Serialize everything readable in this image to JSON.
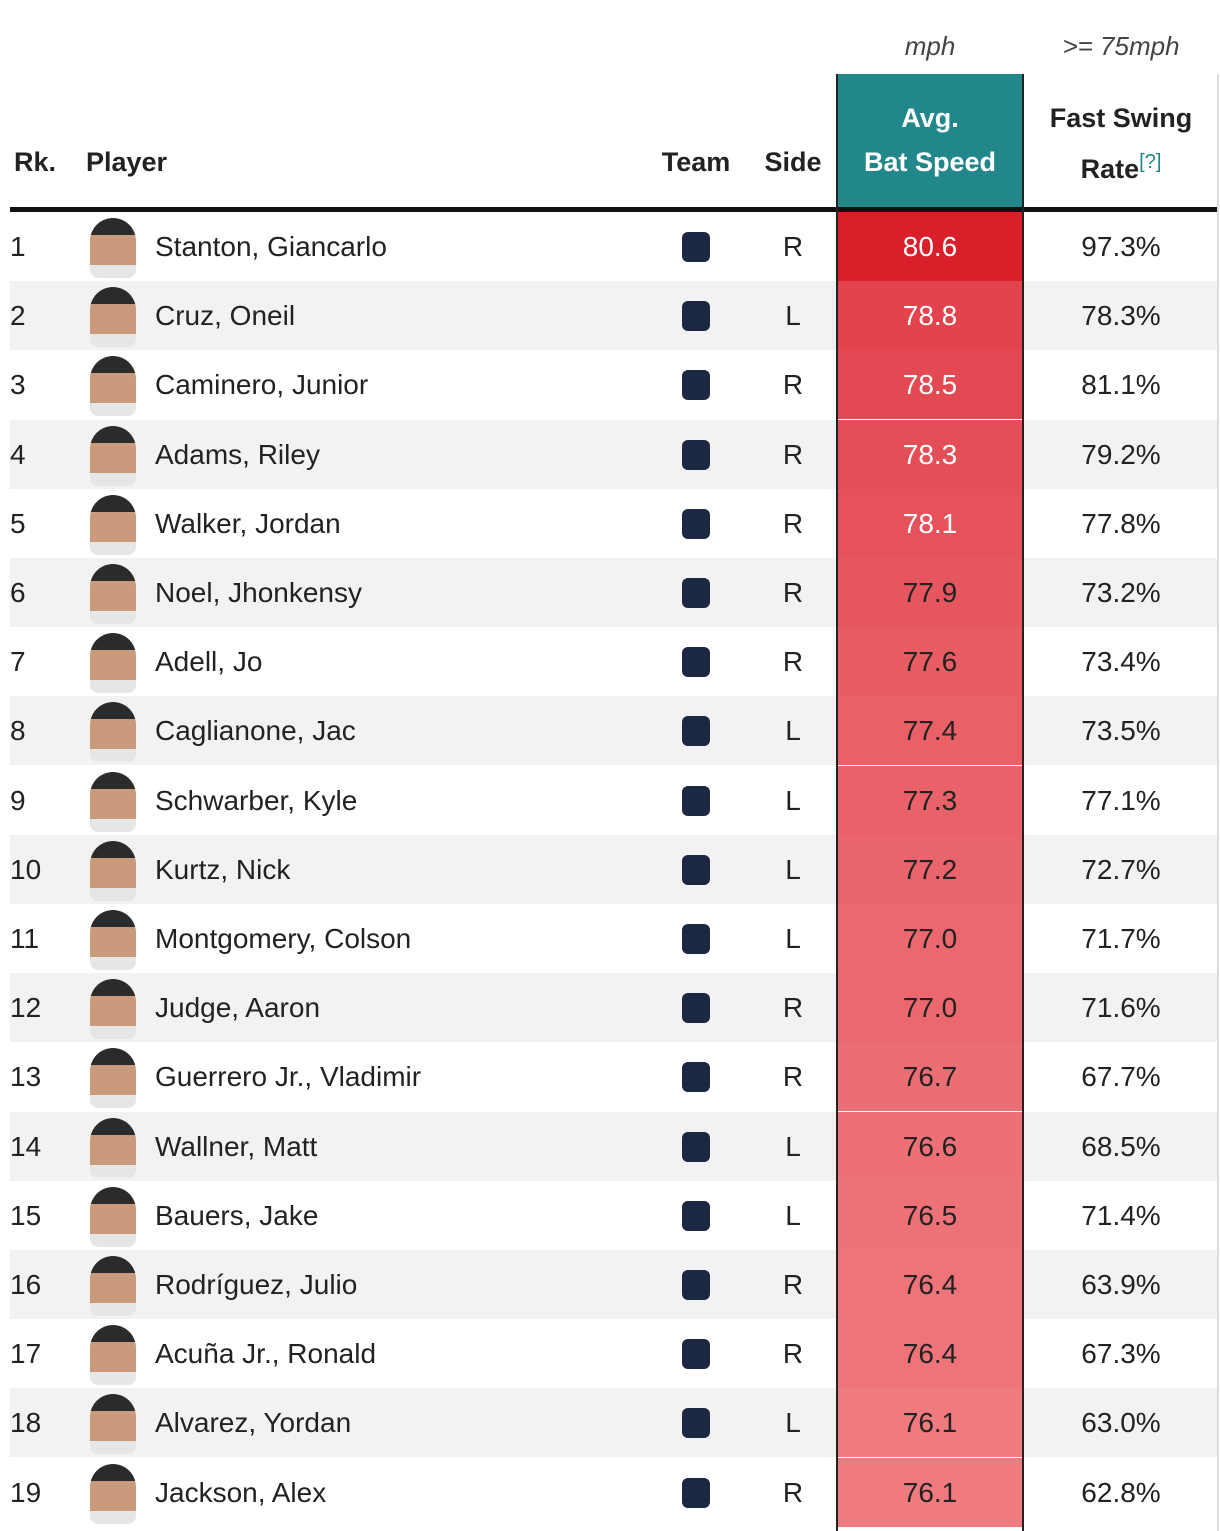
{
  "header": {
    "units": [
      "mph",
      ">= 75mph"
    ],
    "columns": {
      "rank": "Rk.",
      "player": "Player",
      "team": "Team",
      "side": "Side",
      "bat_speed": [
        "Avg.",
        "Bat Speed"
      ],
      "fast_swing": [
        "Fast Swing",
        "Rate"
      ],
      "help": "[?]"
    }
  },
  "table": {
    "rows": [
      [
        "1",
        "Stanton, Giancarlo",
        "R",
        "80.6",
        "97.3%"
      ],
      [
        "2",
        "Cruz, Oneil",
        "L",
        "78.8",
        "78.3%"
      ],
      [
        "3",
        "Caminero, Junior",
        "R",
        "78.5",
        "81.1%"
      ],
      [
        "4",
        "Adams, Riley",
        "R",
        "78.3",
        "79.2%"
      ],
      [
        "5",
        "Walker, Jordan",
        "R",
        "78.1",
        "77.8%"
      ],
      [
        "6",
        "Noel, Jhonkensy",
        "R",
        "77.9",
        "73.2%"
      ],
      [
        "7",
        "Adell, Jo",
        "R",
        "77.6",
        "73.4%"
      ],
      [
        "8",
        "Caglianone, Jac",
        "L",
        "77.4",
        "73.5%"
      ],
      [
        "9",
        "Schwarber, Kyle",
        "L",
        "77.3",
        "77.1%"
      ],
      [
        "10",
        "Kurtz, Nick",
        "L",
        "77.2",
        "72.7%"
      ],
      [
        "11",
        "Montgomery, Colson",
        "L",
        "77.0",
        "71.7%"
      ],
      [
        "12",
        "Judge, Aaron",
        "R",
        "77.0",
        "71.6%"
      ],
      [
        "13",
        "Guerrero Jr., Vladimir",
        "R",
        "76.7",
        "67.7%"
      ],
      [
        "14",
        "Wallner, Matt",
        "L",
        "76.6",
        "68.5%"
      ],
      [
        "15",
        "Bauers, Jake",
        "L",
        "76.5",
        "71.4%"
      ],
      [
        "16",
        "Rodríguez, Julio",
        "R",
        "76.4",
        "63.9%"
      ],
      [
        "17",
        "Acuña Jr., Ronald",
        "R",
        "76.4",
        "67.3%"
      ],
      [
        "18",
        "Alvarez, Yordan",
        "L",
        "76.1",
        "63.0%"
      ],
      [
        "19",
        "Jackson, Alex",
        "R",
        "76.1",
        "62.8%"
      ]
    ]
  }
}
